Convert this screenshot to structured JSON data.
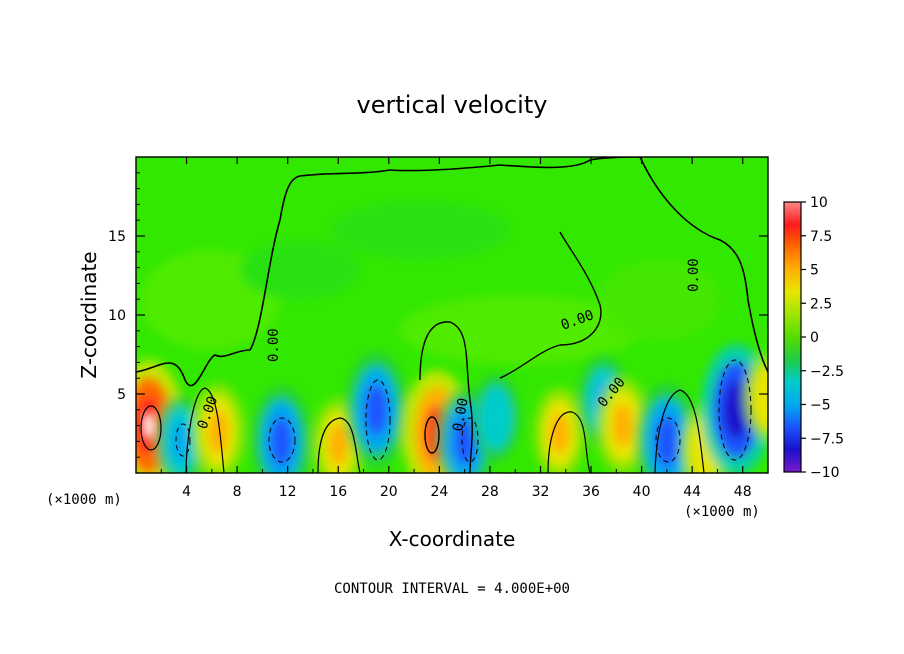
{
  "chart_data": {
    "type": "heatmap",
    "title": "vertical velocity",
    "xlabel": "X-coordinate",
    "ylabel": "Z-coordinate",
    "x_unit_left": "(×1000 m)",
    "x_unit_right": "(×1000 m)",
    "footer": "CONTOUR INTERVAL = 4.000E+00",
    "contour_labels": [
      "0.00"
    ],
    "xlim": [
      0,
      50
    ],
    "ylim": [
      0,
      20
    ],
    "xticks": [
      "4",
      "8",
      "12",
      "16",
      "20",
      "24",
      "28",
      "32",
      "36",
      "40",
      "44",
      "48"
    ],
    "yticks": [
      "5",
      "10",
      "15"
    ],
    "colorbar": {
      "range": [
        -10,
        10
      ],
      "tick_labels": [
        "10",
        "7.5",
        "5",
        "2.5",
        "0",
        "−2.5",
        "−5",
        "−7.5",
        "−10"
      ],
      "colors": [
        "#ff8888",
        "#ff1a1a",
        "#ff6a00",
        "#ffb000",
        "#e6e600",
        "#9ee600",
        "#55dd00",
        "#22cc44",
        "#00cccc",
        "#00aaee",
        "#1a55ff",
        "#1a10cc",
        "#7a1acc"
      ]
    },
    "cells": [
      {
        "x": 1.0,
        "z": 3.0,
        "w": 8.5
      },
      {
        "x": 3.5,
        "z": 2.0,
        "w": -4.5
      },
      {
        "x": 6.5,
        "z": 2.6,
        "w": 5.0
      },
      {
        "x": 11.5,
        "z": 2.0,
        "w": -6.5
      },
      {
        "x": 16.0,
        "z": 1.8,
        "w": 4.5
      },
      {
        "x": 19.0,
        "z": 4.0,
        "w": -7.0
      },
      {
        "x": 23.8,
        "z": 2.5,
        "w": 8.0
      },
      {
        "x": 26.0,
        "z": 2.0,
        "w": -6.0
      },
      {
        "x": 28.5,
        "z": 3.5,
        "w": -4.0
      },
      {
        "x": 33.5,
        "z": 2.5,
        "w": 4.5
      },
      {
        "x": 37.0,
        "z": 4.5,
        "w": -4.5
      },
      {
        "x": 38.5,
        "z": 3.0,
        "w": 5.0
      },
      {
        "x": 42.0,
        "z": 2.0,
        "w": -7.0
      },
      {
        "x": 45.0,
        "z": 1.5,
        "w": 4.0
      },
      {
        "x": 47.5,
        "z": 4.0,
        "w": -8.5
      },
      {
        "x": 50.0,
        "z": 4.8,
        "w": 4.0
      }
    ]
  }
}
